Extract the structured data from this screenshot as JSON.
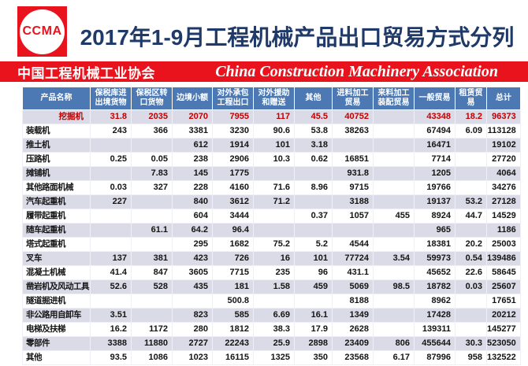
{
  "page": {
    "title": "2017年1-9月工程机械产品出口贸易方式分列",
    "logo_text": "CCMA"
  },
  "banner": {
    "org_name_cn": "中国工程机械工业协会",
    "org_name_en": "China Construction Machinery Association"
  },
  "colors": {
    "brand_red": "#e9131d",
    "title_navy": "#1f3a68",
    "table_header_blue": "#4c79b4",
    "row_stripe_lavender": "#dbdbe8",
    "highlight_value_red": "#c00000"
  },
  "table": {
    "columns": [
      "产品名称",
      "保税库进\n出境货物",
      "保税区转\n口货物",
      "边境小额",
      "对外承包\n工程出口",
      "对外援助\n和赠送",
      "其他",
      "进料加工\n贸易",
      "来料加工\n装配贸易",
      "一般贸易",
      "租赁贸易",
      "总计"
    ],
    "rows": [
      {
        "name": "挖掘机",
        "highlight": true,
        "values": [
          "31.8",
          "2035",
          "2070",
          "7955",
          "117",
          "45.5",
          "40752",
          "",
          "43348",
          "18.2",
          "96373"
        ]
      },
      {
        "name": "装载机",
        "highlight": false,
        "values": [
          "243",
          "366",
          "3381",
          "3230",
          "90.6",
          "53.8",
          "38263",
          "",
          "67494",
          "6.09",
          "113128"
        ]
      },
      {
        "name": "推土机",
        "highlight": false,
        "values": [
          "",
          "",
          "612",
          "1914",
          "101",
          "3.18",
          "",
          "",
          "16471",
          "",
          "19102"
        ]
      },
      {
        "name": "压路机",
        "highlight": false,
        "values": [
          "0.25",
          "0.05",
          "238",
          "2906",
          "10.3",
          "0.62",
          "16851",
          "",
          "7714",
          "",
          "27720"
        ]
      },
      {
        "name": "摊铺机",
        "highlight": false,
        "values": [
          "",
          "7.83",
          "145",
          "1775",
          "",
          "",
          "931.8",
          "",
          "1205",
          "",
          "4064"
        ]
      },
      {
        "name": "其他路面机械",
        "highlight": false,
        "values": [
          "0.03",
          "327",
          "228",
          "4160",
          "71.6",
          "8.96",
          "9715",
          "",
          "19766",
          "",
          "34276"
        ]
      },
      {
        "name": "汽车起重机",
        "highlight": false,
        "values": [
          "227",
          "",
          "840",
          "3612",
          "71.2",
          "",
          "3188",
          "",
          "19137",
          "53.2",
          "27128"
        ]
      },
      {
        "name": "履带起重机",
        "highlight": false,
        "values": [
          "",
          "",
          "604",
          "3444",
          "",
          "0.37",
          "1057",
          "455",
          "8924",
          "44.7",
          "14529"
        ]
      },
      {
        "name": "随车起重机",
        "highlight": false,
        "values": [
          "",
          "61.1",
          "64.2",
          "96.4",
          "",
          "",
          "",
          "",
          "965",
          "",
          "1186"
        ]
      },
      {
        "name": "塔式起重机",
        "highlight": false,
        "values": [
          "",
          "",
          "295",
          "1682",
          "75.2",
          "5.2",
          "4544",
          "",
          "18381",
          "20.2",
          "25003"
        ]
      },
      {
        "name": "叉车",
        "highlight": false,
        "values": [
          "137",
          "381",
          "423",
          "726",
          "16",
          "101",
          "77724",
          "3.54",
          "59973",
          "0.54",
          "139486"
        ]
      },
      {
        "name": "混凝土机械",
        "highlight": false,
        "values": [
          "41.4",
          "847",
          "3605",
          "7715",
          "235",
          "96",
          "431.1",
          "",
          "45652",
          "22.6",
          "58645"
        ]
      },
      {
        "name": "凿岩机及风动工具",
        "highlight": false,
        "values": [
          "52.6",
          "528",
          "435",
          "181",
          "1.58",
          "459",
          "5069",
          "98.5",
          "18782",
          "0.03",
          "25607"
        ]
      },
      {
        "name": "隧道掘进机",
        "highlight": false,
        "values": [
          "",
          "",
          "",
          "500.8",
          "",
          "",
          "8188",
          "",
          "8962",
          "",
          "17651"
        ]
      },
      {
        "name": "非公路用自卸车",
        "highlight": false,
        "values": [
          "3.51",
          "",
          "823",
          "585",
          "6.69",
          "16.1",
          "1349",
          "",
          "17428",
          "",
          "20212"
        ]
      },
      {
        "name": "电梯及扶梯",
        "highlight": false,
        "values": [
          "16.2",
          "1172",
          "280",
          "1812",
          "38.3",
          "17.9",
          "2628",
          "",
          "139311",
          "",
          "145277"
        ]
      },
      {
        "name": "零部件",
        "highlight": false,
        "values": [
          "3388",
          "11880",
          "2727",
          "22243",
          "25.9",
          "2898",
          "23409",
          "806",
          "455644",
          "30.3",
          "523050"
        ]
      },
      {
        "name": "其他",
        "highlight": false,
        "values": [
          "93.5",
          "1086",
          "1023",
          "16115",
          "1325",
          "350",
          "23568",
          "6.17",
          "87996",
          "958",
          "132522"
        ]
      }
    ]
  }
}
